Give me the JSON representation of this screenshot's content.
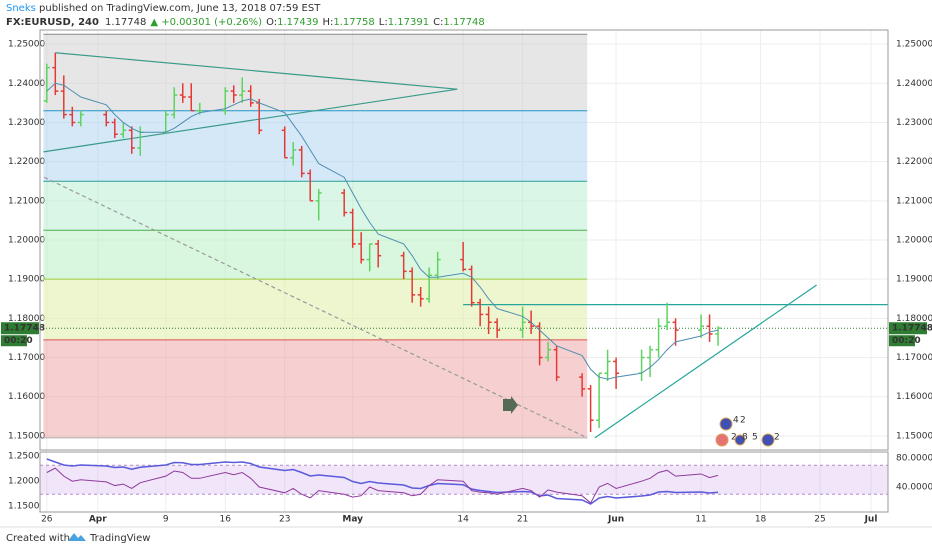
{
  "header": {
    "author": "Sneks",
    "published": " published on TradingView.com, June 13, 2018 07:59 EST",
    "symbol": "FX:EURUSD, 240",
    "change": "▲ +0.00301 (+0.26%)",
    "o_label": "O:",
    "h_label": "H:",
    "l_label": "L:",
    "c_label": "C:",
    "open": 1.17439,
    "high": 1.17758,
    "low": 1.17391,
    "close": 1.17748
  },
  "chart_data": {
    "type": "ohlc",
    "x": [
      0,
      1,
      2,
      3,
      4,
      7,
      8,
      9,
      10,
      11,
      14,
      15,
      16,
      17,
      18,
      21,
      22,
      23,
      24,
      25,
      28,
      29,
      30,
      31,
      32,
      35,
      36,
      37,
      38,
      39,
      42,
      43,
      44,
      45,
      46,
      49,
      50,
      51,
      52,
      53,
      56,
      57,
      58,
      59,
      60,
      63,
      64,
      65,
      66,
      67,
      70,
      71,
      72,
      73,
      74,
      77,
      78,
      79
    ],
    "open": [
      1.2355,
      1.244,
      1.238,
      1.232,
      1.23,
      1.232,
      1.23,
      1.227,
      1.228,
      1.2235,
      1.2275,
      1.232,
      1.237,
      1.2365,
      1.233,
      1.233,
      1.238,
      1.237,
      1.238,
      1.235,
      1.228,
      1.221,
      1.223,
      1.217,
      1.21,
      1.212,
      1.207,
      1.199,
      1.195,
      1.199,
      1.196,
      1.192,
      1.186,
      1.185,
      1.191,
      1.195,
      1.1925,
      1.184,
      1.181,
      1.179,
      1.177,
      1.179,
      1.178,
      1.17,
      1.172,
      1.165,
      1.162,
      1.154,
      1.166,
      1.169,
      1.166,
      1.17,
      1.172,
      1.178,
      1.179,
      1.177,
      1.178,
      1.176
    ],
    "high": [
      1.245,
      1.2478,
      1.242,
      1.234,
      1.233,
      1.233,
      1.231,
      1.23,
      1.229,
      1.229,
      1.233,
      1.239,
      1.24,
      1.24,
      1.235,
      1.239,
      1.2395,
      1.2415,
      1.2395,
      1.236,
      1.229,
      1.225,
      1.224,
      1.218,
      1.213,
      1.213,
      1.208,
      1.202,
      1.199,
      1.2,
      1.197,
      1.193,
      1.188,
      1.193,
      1.197,
      1.1995,
      1.1935,
      1.185,
      1.183,
      1.18,
      1.183,
      1.182,
      1.179,
      1.174,
      1.173,
      1.166,
      1.163,
      1.166,
      1.172,
      1.17,
      1.172,
      1.173,
      1.18,
      1.184,
      1.18,
      1.181,
      1.181,
      1.178
    ],
    "low": [
      1.235,
      1.237,
      1.231,
      1.229,
      1.229,
      1.229,
      1.226,
      1.226,
      1.222,
      1.2215,
      1.227,
      1.231,
      1.235,
      1.233,
      1.232,
      1.232,
      1.235,
      1.235,
      1.234,
      1.227,
      1.221,
      1.219,
      1.216,
      1.21,
      1.205,
      1.206,
      1.198,
      1.194,
      1.192,
      1.193,
      1.19,
      1.184,
      1.183,
      1.184,
      1.19,
      1.192,
      1.183,
      1.178,
      1.176,
      1.175,
      1.175,
      1.176,
      1.168,
      1.169,
      1.164,
      1.16,
      1.151,
      1.152,
      1.164,
      1.162,
      1.164,
      1.165,
      1.17,
      1.177,
      1.173,
      1.175,
      1.174,
      1.173
    ],
    "close": [
      1.244,
      1.238,
      1.232,
      1.23,
      1.232,
      1.23,
      1.227,
      1.228,
      1.2235,
      1.2275,
      1.232,
      1.237,
      1.2365,
      1.233,
      1.233,
      1.238,
      1.237,
      1.238,
      1.235,
      1.228,
      1.221,
      1.223,
      1.217,
      1.21,
      1.212,
      1.207,
      1.199,
      1.195,
      1.199,
      1.196,
      1.192,
      1.186,
      1.185,
      1.191,
      1.195,
      1.1925,
      1.184,
      1.181,
      1.179,
      1.177,
      1.179,
      1.178,
      1.17,
      1.172,
      1.165,
      1.162,
      1.154,
      1.166,
      1.169,
      1.166,
      1.17,
      1.172,
      1.178,
      1.179,
      1.177,
      1.178,
      1.176,
      1.1775
    ],
    "ma": [
      1.238,
      1.24,
      1.2395,
      1.238,
      1.2365,
      1.2345,
      1.232,
      1.23,
      1.2285,
      1.2275,
      1.2275,
      1.2285,
      1.23,
      1.2315,
      1.2325,
      1.2335,
      1.2345,
      1.2355,
      1.236,
      1.235,
      1.2325,
      1.2295,
      1.2265,
      1.223,
      1.2195,
      1.216,
      1.212,
      1.208,
      1.2045,
      1.2015,
      1.199,
      1.196,
      1.1925,
      1.1905,
      1.1905,
      1.1915,
      1.1905,
      1.188,
      1.185,
      1.1825,
      1.1805,
      1.179,
      1.177,
      1.175,
      1.173,
      1.1705,
      1.167,
      1.165,
      1.1645,
      1.165,
      1.166,
      1.1675,
      1.1695,
      1.172,
      1.174,
      1.1755,
      1.1765,
      1.177
    ],
    "rsi": [
      60,
      66,
      55,
      48,
      50,
      47,
      42,
      44,
      38,
      46,
      55,
      62,
      60,
      52,
      52,
      60,
      57,
      60,
      52,
      40,
      32,
      38,
      30,
      25,
      35,
      30,
      26,
      28,
      40,
      35,
      32,
      28,
      30,
      42,
      50,
      48,
      35,
      33,
      32,
      30,
      38,
      35,
      26,
      36,
      33,
      28,
      18,
      40,
      45,
      38,
      48,
      52,
      60,
      63,
      55,
      58,
      53,
      56
    ],
    "up_color": "#5fd35f",
    "down_color": "#e53935",
    "ma_color": "#4f8fb0",
    "rsi_color": "#8e3a9e",
    "pane_line_color": "#5a5adc",
    "last": 1.17748,
    "countdown": "00:20",
    "xlim": [
      -0.8,
      99
    ],
    "xticks": [
      {
        "value": 0,
        "label": "26"
      },
      {
        "value": 6,
        "label": "Apr"
      },
      {
        "value": 14,
        "label": "9"
      },
      {
        "value": 21,
        "label": "16"
      },
      {
        "value": 28,
        "label": "23"
      },
      {
        "value": 36,
        "label": "May"
      },
      {
        "value": 49,
        "label": "14"
      },
      {
        "value": 56,
        "label": "21"
      },
      {
        "value": 67,
        "label": "Jun"
      },
      {
        "value": 77,
        "label": "11"
      },
      {
        "value": 84,
        "label": "18"
      },
      {
        "value": 91,
        "label": "25"
      },
      {
        "value": 97,
        "label": "Jul"
      }
    ],
    "ylim": [
      1.1464,
      1.2536
    ],
    "yticks": [
      {
        "value": 1.15,
        "label": "1.15000"
      },
      {
        "value": 1.16,
        "label": "1.16000"
      },
      {
        "value": 1.17,
        "label": "1.17000"
      },
      {
        "value": 1.18,
        "label": "1.18000"
      },
      {
        "value": 1.19,
        "label": "1.19000"
      },
      {
        "value": 1.2,
        "label": "1.20000"
      },
      {
        "value": 1.21,
        "label": "1.21000"
      },
      {
        "value": 1.22,
        "label": "1.22000"
      },
      {
        "value": 1.23,
        "label": "1.23000"
      },
      {
        "value": 1.24,
        "label": "1.24000"
      },
      {
        "value": 1.25,
        "label": "1.25000"
      }
    ],
    "pane_ylim": [
      1.138,
      1.258
    ],
    "pane_yticks": [
      {
        "value": 1.25,
        "label": "1.2500"
      },
      {
        "value": 1.2,
        "label": "1.2000"
      },
      {
        "value": 1.15,
        "label": "1.1500"
      }
    ],
    "rsi_ylim": [
      5.5,
      88.3
    ],
    "rsi_yticks": [
      {
        "value": 80,
        "label": "80.0000"
      },
      {
        "value": 40,
        "label": "40.0000"
      }
    ],
    "rsi_bands": [
      30,
      70
    ],
    "fib_x": [
      -0.4,
      63.6
    ],
    "fib_levels": [
      1.1495,
      1.1745,
      1.19,
      1.2025,
      1.215,
      1.233,
      1.2525
    ],
    "fib_colors": [
      "rgba(236,150,150,0.45)",
      "rgba(225,240,175,0.6)",
      "rgba(180,240,190,0.5)",
      "rgba(170,235,200,0.45)",
      "rgba(160,205,240,0.45)",
      "rgba(200,200,200,0.45)"
    ],
    "fib_line_colors": [
      "#b0b0b0",
      "#e05050",
      "#9ccc40",
      "#4caf50",
      "#2aa198",
      "#2196c8",
      "#888888"
    ],
    "trendlines": [
      {
        "points": [
          [
            1,
            1.2478
          ],
          [
            48.3,
            1.2385
          ]
        ],
        "color": "#3a9a8a",
        "dash": false
      },
      {
        "points": [
          [
            -0.4,
            1.2225
          ],
          [
            48.3,
            1.2385
          ]
        ],
        "color": "#3a9a8a",
        "dash": false
      },
      {
        "points": [
          [
            -0.3,
            1.216
          ],
          [
            63.6,
            1.1495
          ]
        ],
        "color": "#999999",
        "dash": true
      },
      {
        "points": [
          [
            64.5,
            1.1495
          ],
          [
            90.6,
            1.1885
          ]
        ],
        "color": "#26a69a",
        "dash": false
      },
      {
        "points": [
          [
            49,
            1.1835
          ],
          [
            99,
            1.1835
          ]
        ],
        "color": "#26a69a",
        "dash": false
      }
    ]
  },
  "events": [
    "4",
    "2",
    "2",
    "8",
    "5",
    "2"
  ],
  "footer": {
    "created": "Created with",
    "brand": "TradingView"
  }
}
